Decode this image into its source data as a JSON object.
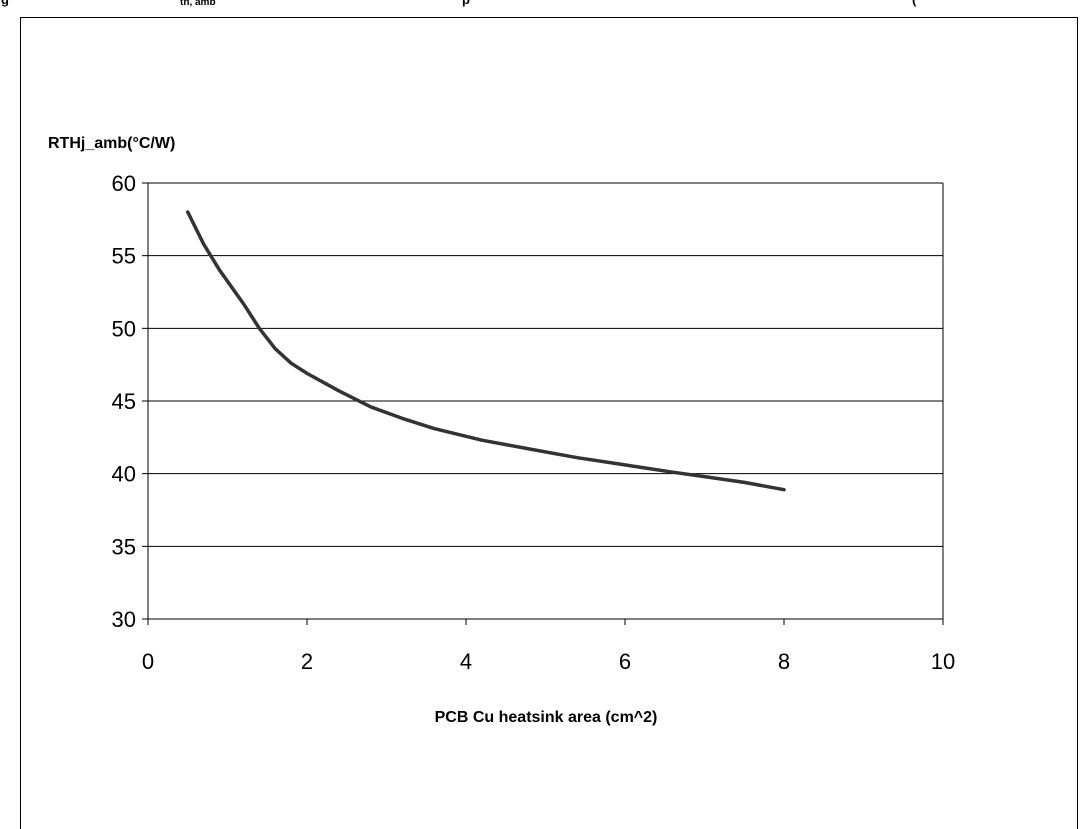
{
  "caption_fragment": {
    "left": "g",
    "mid": "th, amb",
    "right": "p",
    "right2": "("
  },
  "chart_data": {
    "type": "line",
    "title": "",
    "ylabel": "RTHj_amb(°C/W)",
    "xlabel": "PCB Cu heatsink area (cm^2)",
    "xlim": [
      0,
      10
    ],
    "ylim": [
      30,
      60
    ],
    "xticks": [
      "0",
      "2",
      "4",
      "6",
      "8",
      "10"
    ],
    "yticks": [
      "60",
      "55",
      "50",
      "45",
      "40",
      "35",
      "30"
    ],
    "grid": true,
    "legend": "none",
    "line_color": "#333333",
    "series": [
      {
        "x": [
          0.5,
          0.7,
          0.9,
          1.2,
          1.4,
          1.6,
          1.8,
          2.0,
          2.4,
          2.8,
          3.2,
          3.6,
          4.2,
          4.8,
          5.4,
          6.0,
          6.6,
          7.0,
          7.5,
          8.0
        ],
        "y": [
          58.0,
          55.8,
          54.0,
          51.7,
          50.0,
          48.6,
          47.6,
          46.9,
          45.7,
          44.6,
          43.8,
          43.1,
          42.3,
          41.7,
          41.1,
          40.6,
          40.1,
          39.8,
          39.4,
          38.9
        ]
      }
    ]
  }
}
